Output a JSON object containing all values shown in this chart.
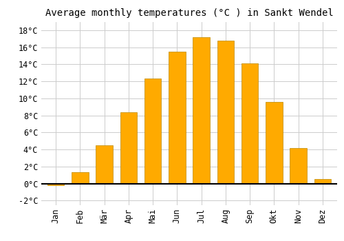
{
  "months": [
    "Jan",
    "Feb",
    "Mär",
    "Apr",
    "Mai",
    "Jun",
    "Jul",
    "Aug",
    "Sep",
    "Okt",
    "Nov",
    "Dez"
  ],
  "values": [
    -0.2,
    1.3,
    4.5,
    8.4,
    12.3,
    15.5,
    17.2,
    16.8,
    14.1,
    9.6,
    4.2,
    0.5
  ],
  "bar_color": "#FFAA00",
  "bar_edge_color": "#BB8800",
  "title": "Average monthly temperatures (°C ) in Sankt Wendel",
  "ylim": [
    -2.5,
    19
  ],
  "yticks": [
    -2,
    0,
    2,
    4,
    6,
    8,
    10,
    12,
    14,
    16,
    18
  ],
  "ytick_labels": [
    "-2°C",
    "0°C",
    "2°C",
    "4°C",
    "6°C",
    "8°C",
    "10°C",
    "12°C",
    "14°C",
    "16°C",
    "18°C"
  ],
  "grid_color": "#cccccc",
  "bg_color": "#ffffff",
  "title_fontsize": 10,
  "tick_fontsize": 8.5,
  "font_family": "monospace"
}
